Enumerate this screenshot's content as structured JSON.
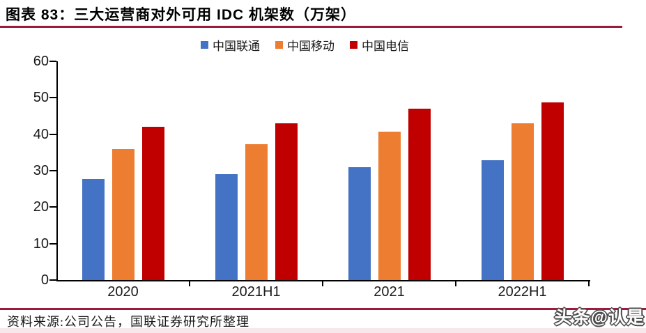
{
  "header": {
    "title": "图表 83：三大运营商对外可用 IDC 机架数（万架）"
  },
  "footer": {
    "source": "资料来源:公司公告，国联证券研究所整理"
  },
  "watermark": "头条@认是",
  "colors": {
    "accent_rule": "#9A1B3C",
    "axis": "#000000",
    "bottom_strip": "#F7E9EB"
  },
  "chart_data": {
    "type": "bar",
    "title": "三大运营商对外可用IDC机架数（万架）",
    "categories": [
      "2020",
      "2021H1",
      "2021",
      "2022H1"
    ],
    "series": [
      {
        "key": "china-unicom",
        "name": "中国联通",
        "color": "#4472C4",
        "values": [
          27.7,
          29.0,
          31.0,
          32.9
        ]
      },
      {
        "key": "china-mobile",
        "name": "中国移动",
        "color": "#ED7D31",
        "values": [
          36.0,
          37.2,
          40.7,
          42.9
        ]
      },
      {
        "key": "china-telecom",
        "name": "中国电信",
        "color": "#C00000",
        "values": [
          42.0,
          43.0,
          47.0,
          48.7
        ]
      }
    ],
    "xlabel": "",
    "ylabel": "",
    "ylim": [
      0,
      60
    ],
    "yticks": [
      0,
      10,
      20,
      30,
      40,
      50,
      60
    ],
    "grid": false,
    "legend_position": "top"
  }
}
